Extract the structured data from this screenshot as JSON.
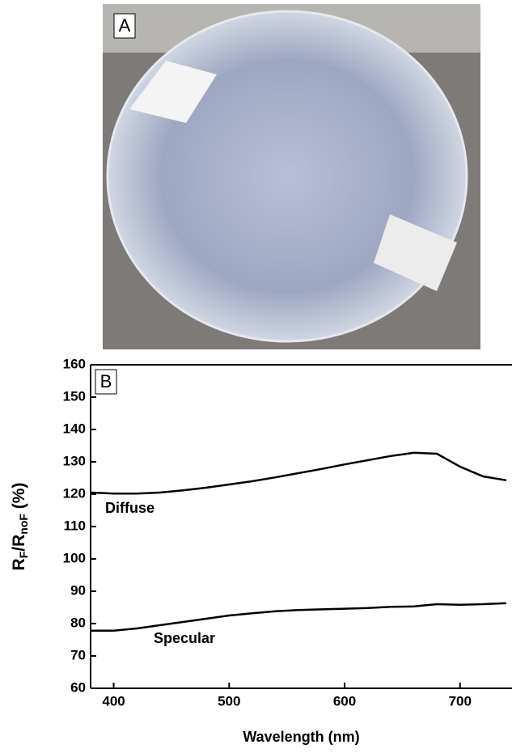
{
  "photo": {
    "label": "A"
  },
  "chart_data": {
    "type": "line",
    "panel_label": "B",
    "x_label": "Wavelength (nm)",
    "y_label": [
      "R",
      "F",
      "/R",
      "noF",
      " (%)"
    ],
    "x": [
      380,
      400,
      420,
      440,
      460,
      480,
      500,
      520,
      540,
      560,
      580,
      600,
      620,
      640,
      660,
      680,
      700,
      720,
      740
    ],
    "series": [
      {
        "name": "Diffuse",
        "color": "#000000",
        "values": [
          120.5,
          120.2,
          120.2,
          120.5,
          121.2,
          122,
          123,
          124,
          125.2,
          126.5,
          127.8,
          129.2,
          130.5,
          131.8,
          132.8,
          132.5,
          128.5,
          125.5,
          124.3
        ]
      },
      {
        "name": "Specular",
        "color": "#000000",
        "values": [
          77.8,
          77.8,
          78.5,
          79.5,
          80.5,
          81.5,
          82.5,
          83.2,
          83.8,
          84.2,
          84.4,
          84.6,
          84.8,
          85.2,
          85.3,
          86,
          85.8,
          86,
          86.3
        ]
      }
    ],
    "xlim": [
      380,
      745
    ],
    "xticks": [
      400,
      500,
      600,
      700
    ],
    "ylim": [
      60,
      160
    ],
    "yticks": [
      60,
      70,
      80,
      90,
      100,
      110,
      120,
      130,
      140,
      150,
      160
    ]
  }
}
